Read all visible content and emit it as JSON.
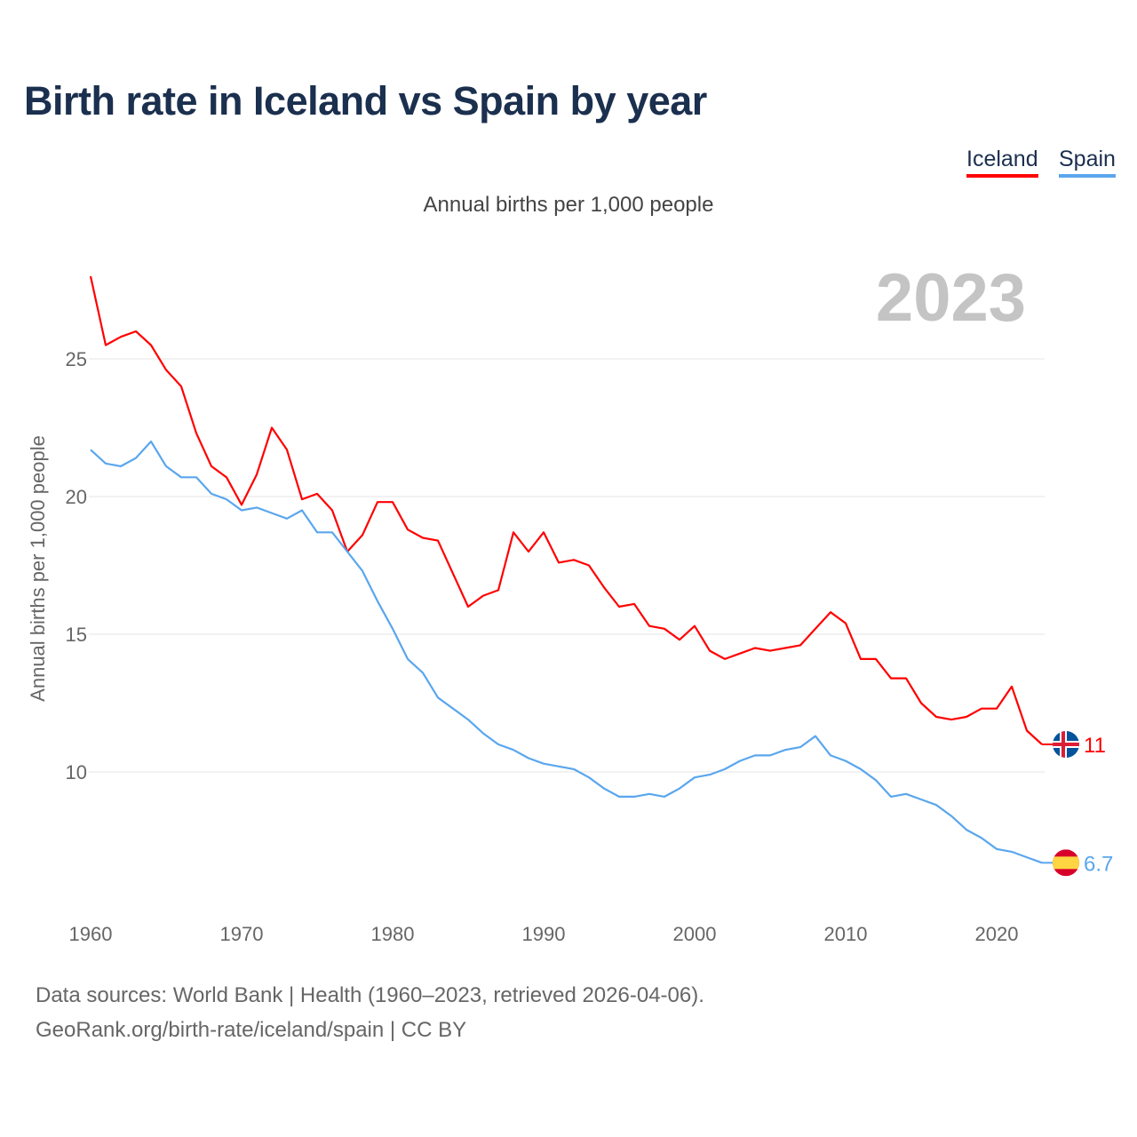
{
  "chart_data": {
    "type": "line",
    "title": "Birth rate in Iceland vs Spain by year",
    "subtitle": "Annual births per 1,000 people",
    "ylabel": "Annual births per 1,000 people",
    "xlabel": "",
    "year_label": "2023",
    "xlim": [
      1960,
      2023
    ],
    "ylim": [
      6,
      28
    ],
    "yticks": [
      10,
      15,
      20,
      25
    ],
    "xticks": [
      1960,
      1970,
      1980,
      1990,
      2000,
      2010,
      2020
    ],
    "grid": true,
    "legend_position": "top-right",
    "x_start": 1960,
    "series": [
      {
        "name": "Iceland",
        "color": "#ff0000",
        "end_label": "11",
        "flag": "iceland-flag",
        "values": [
          28.0,
          25.5,
          25.8,
          26.0,
          25.5,
          24.6,
          24.0,
          22.3,
          21.1,
          20.7,
          19.7,
          20.8,
          22.5,
          21.7,
          19.9,
          20.1,
          19.5,
          18.0,
          18.6,
          19.8,
          19.8,
          18.8,
          18.5,
          18.4,
          17.2,
          16.0,
          16.4,
          16.6,
          18.7,
          18.0,
          18.7,
          17.6,
          17.7,
          17.5,
          16.7,
          16.0,
          16.1,
          15.3,
          15.2,
          14.8,
          15.3,
          14.4,
          14.1,
          14.3,
          14.5,
          14.4,
          14.5,
          14.6,
          15.2,
          15.8,
          15.4,
          14.1,
          14.1,
          13.4,
          13.4,
          12.5,
          12.0,
          11.9,
          12.0,
          12.3,
          12.3,
          13.1,
          11.5,
          11.0
        ]
      },
      {
        "name": "Spain",
        "color": "#5aa6ee",
        "end_label": "6.7",
        "flag": "spain-flag",
        "values": [
          21.7,
          21.2,
          21.1,
          21.4,
          22.0,
          21.1,
          20.7,
          20.7,
          20.1,
          19.9,
          19.5,
          19.6,
          19.4,
          19.2,
          19.5,
          18.7,
          18.7,
          18.0,
          17.3,
          16.2,
          15.2,
          14.1,
          13.6,
          12.7,
          12.3,
          11.9,
          11.4,
          11.0,
          10.8,
          10.5,
          10.3,
          10.2,
          10.1,
          9.8,
          9.4,
          9.1,
          9.1,
          9.2,
          9.1,
          9.4,
          9.8,
          9.9,
          10.1,
          10.4,
          10.6,
          10.6,
          10.8,
          10.9,
          11.3,
          10.6,
          10.4,
          10.1,
          9.7,
          9.1,
          9.2,
          9.0,
          8.8,
          8.4,
          7.9,
          7.6,
          7.2,
          7.1,
          6.9,
          6.7
        ]
      }
    ]
  },
  "footer": {
    "line1": "Data sources: World Bank | Health (1960–2023, retrieved 2026-04-06).",
    "line2": "GeoRank.org/birth-rate/iceland/spain | CC BY"
  }
}
